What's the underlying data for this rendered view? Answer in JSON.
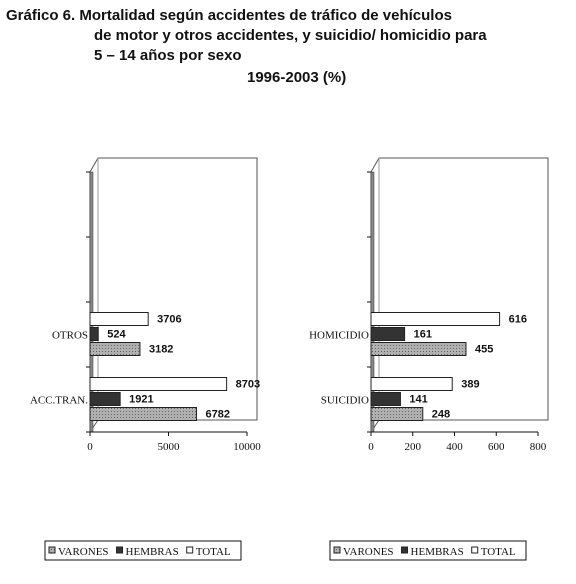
{
  "title": [
    "Gráfico 6. Mortalidad según accidentes de tráfico de vehículos",
    "de motor y otros accidentes, y suicidio/ homicidio para",
    "5 – 14 años por sexo"
  ],
  "subtitle": "1996-2003 (%)",
  "chart_data": [
    {
      "type": "hbar",
      "categories": [
        "ACC.TRAN.",
        "OTROS"
      ],
      "series": [
        {
          "name": "VARONES",
          "color": "#a0a0a0",
          "values": [
            6782,
            3182
          ]
        },
        {
          "name": "HEMBRAS",
          "color": "#333333",
          "values": [
            1921,
            524
          ]
        },
        {
          "name": "TOTAL",
          "color": "#ffffff",
          "values": [
            8703,
            3706
          ]
        }
      ],
      "xlim": [
        0,
        10000
      ],
      "xticks": [
        0,
        5000,
        10000
      ],
      "legend": "bottom"
    },
    {
      "type": "hbar",
      "categories": [
        "SUICIDIO",
        "HOMICIDIO"
      ],
      "series": [
        {
          "name": "VARONES",
          "color": "#a0a0a0",
          "values": [
            248,
            455
          ]
        },
        {
          "name": "HEMBRAS",
          "color": "#333333",
          "values": [
            141,
            161
          ]
        },
        {
          "name": "TOTAL",
          "color": "#ffffff",
          "values": [
            389,
            616
          ]
        }
      ],
      "xlim": [
        0,
        800
      ],
      "xticks": [
        0,
        200,
        400,
        600,
        800
      ],
      "legend": "bottom"
    }
  ]
}
